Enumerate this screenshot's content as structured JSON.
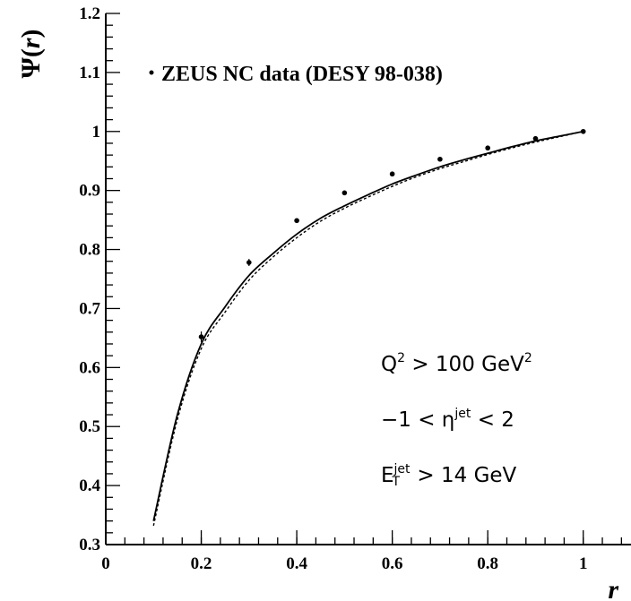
{
  "chart_data": {
    "type": "scatter",
    "xlabel": "r",
    "ylabel_symbol": "Ψ(",
    "ylabel_var": "r",
    "ylabel_close": ")",
    "xlim": [
      0,
      1.1
    ],
    "ylim": [
      0.3,
      1.2
    ],
    "x_ticks": [
      0,
      0.2,
      0.4,
      0.6,
      0.8,
      1
    ],
    "x_tick_labels": [
      "0",
      "0.2",
      "0.4",
      "0.6",
      "0.8",
      "1"
    ],
    "y_ticks": [
      0.3,
      0.4,
      0.5,
      0.6,
      0.7,
      0.8,
      0.9,
      1,
      1.1,
      1.2
    ],
    "y_tick_labels": [
      "0.3",
      "0.4",
      "0.5",
      "0.6",
      "0.7",
      "0.8",
      "0.9",
      "1",
      "1.1",
      "1.2"
    ],
    "grid": false,
    "legend": {
      "position": "top-left",
      "entries": [
        "ZEUS NC data  (DESY 98-038)"
      ]
    },
    "series": [
      {
        "name": "ZEUS NC data  (DESY 98-038)",
        "kind": "points",
        "color": "#000000",
        "x": [
          0.2,
          0.3,
          0.4,
          0.5,
          0.6,
          0.7,
          0.8,
          0.9,
          1.0
        ],
        "y": [
          0.652,
          0.778,
          0.849,
          0.896,
          0.928,
          0.953,
          0.972,
          0.988,
          1.0
        ],
        "yerr": [
          0.009,
          0.006,
          0.004,
          0.003,
          0.003,
          0.002,
          0.002,
          0.001,
          0.0
        ]
      },
      {
        "kind": "line",
        "style": "solid",
        "color": "#000000",
        "x": [
          0.1,
          0.15,
          0.2,
          0.25,
          0.3,
          0.35,
          0.4,
          0.45,
          0.5,
          0.55,
          0.6,
          0.65,
          0.7,
          0.75,
          0.8,
          0.85,
          0.9,
          0.95,
          1.0
        ],
        "y": [
          0.34,
          0.52,
          0.64,
          0.703,
          0.756,
          0.793,
          0.826,
          0.853,
          0.874,
          0.893,
          0.911,
          0.926,
          0.94,
          0.952,
          0.963,
          0.974,
          0.984,
          0.992,
          1.0
        ]
      },
      {
        "kind": "line",
        "style": "dashed",
        "color": "#000000",
        "x": [
          0.1,
          0.15,
          0.2,
          0.25,
          0.3,
          0.35,
          0.4,
          0.45,
          0.5,
          0.55,
          0.6,
          0.65,
          0.7,
          0.75,
          0.8,
          0.85,
          0.9,
          0.95,
          1.0
        ],
        "y": [
          0.332,
          0.512,
          0.632,
          0.694,
          0.748,
          0.787,
          0.82,
          0.848,
          0.87,
          0.889,
          0.907,
          0.923,
          0.937,
          0.949,
          0.961,
          0.972,
          0.982,
          0.991,
          1.0
        ]
      }
    ],
    "annotations": {
      "line1": {
        "prefix": "Q",
        "sup": "2",
        "mid": " > 100 GeV",
        "sup2": "2"
      },
      "line2": {
        "prefix": "−1 < η",
        "sup": "jet",
        "suffix": " < 2"
      },
      "line3": {
        "prefix": "E",
        "sub": "T",
        "sup": "jet",
        "suffix": " > 14 GeV"
      }
    }
  }
}
